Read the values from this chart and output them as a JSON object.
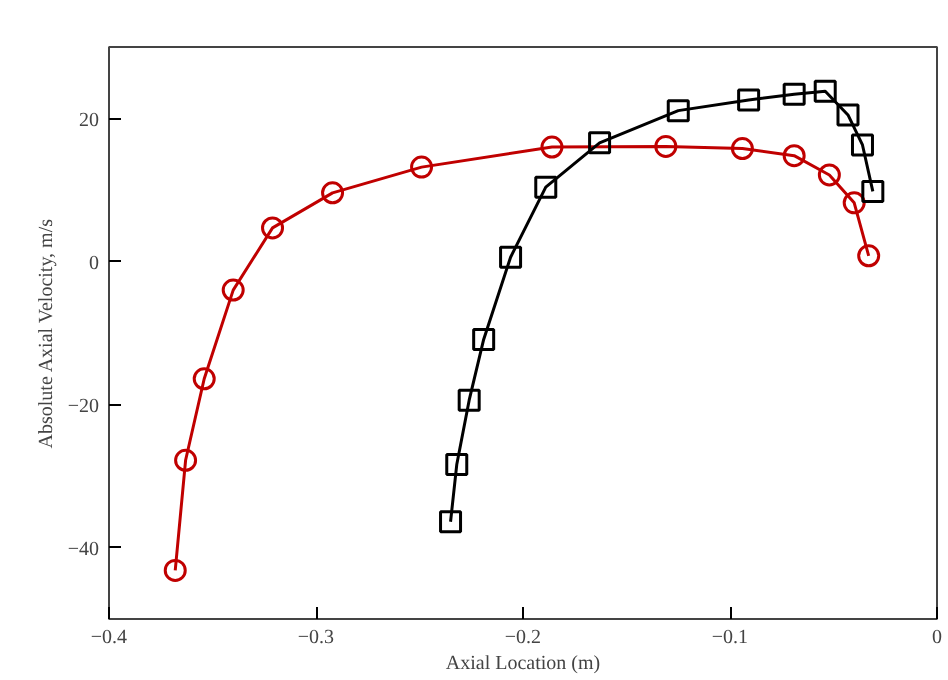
{
  "chart_data": {
    "type": "line",
    "xlabel": "Axial Location (m)",
    "ylabel": "Absolute Axial Velocity, m/s",
    "xlim": [
      -0.4,
      0
    ],
    "ylim": [
      -50,
      30
    ],
    "xticks": [
      -0.4,
      -0.3,
      -0.2,
      -0.1,
      0
    ],
    "yticks": [
      -40,
      -20,
      0,
      20
    ],
    "grid": false,
    "series": [
      {
        "color": "#c00000",
        "marker": "circle",
        "x": [
          -0.368,
          -0.363,
          -0.354,
          -0.34,
          -0.321,
          -0.292,
          -0.249,
          -0.186,
          -0.131,
          -0.094,
          -0.069,
          -0.052,
          -0.04,
          -0.033
        ],
        "values": [
          -43.2,
          -27.8,
          -16.4,
          -4.0,
          4.7,
          9.6,
          13.2,
          16.0,
          16.1,
          15.8,
          14.8,
          12.1,
          8.2,
          0.8
        ]
      },
      {
        "color": "#000000",
        "marker": "square",
        "x": [
          -0.235,
          -0.232,
          -0.226,
          -0.219,
          -0.206,
          -0.189,
          -0.163,
          -0.125,
          -0.091,
          -0.069,
          -0.054,
          -0.043,
          -0.036,
          -0.031
        ],
        "values": [
          -36.4,
          -28.4,
          -19.4,
          -10.9,
          0.6,
          10.4,
          16.6,
          21.1,
          22.6,
          23.4,
          23.8,
          20.5,
          16.3,
          9.8
        ]
      }
    ]
  }
}
